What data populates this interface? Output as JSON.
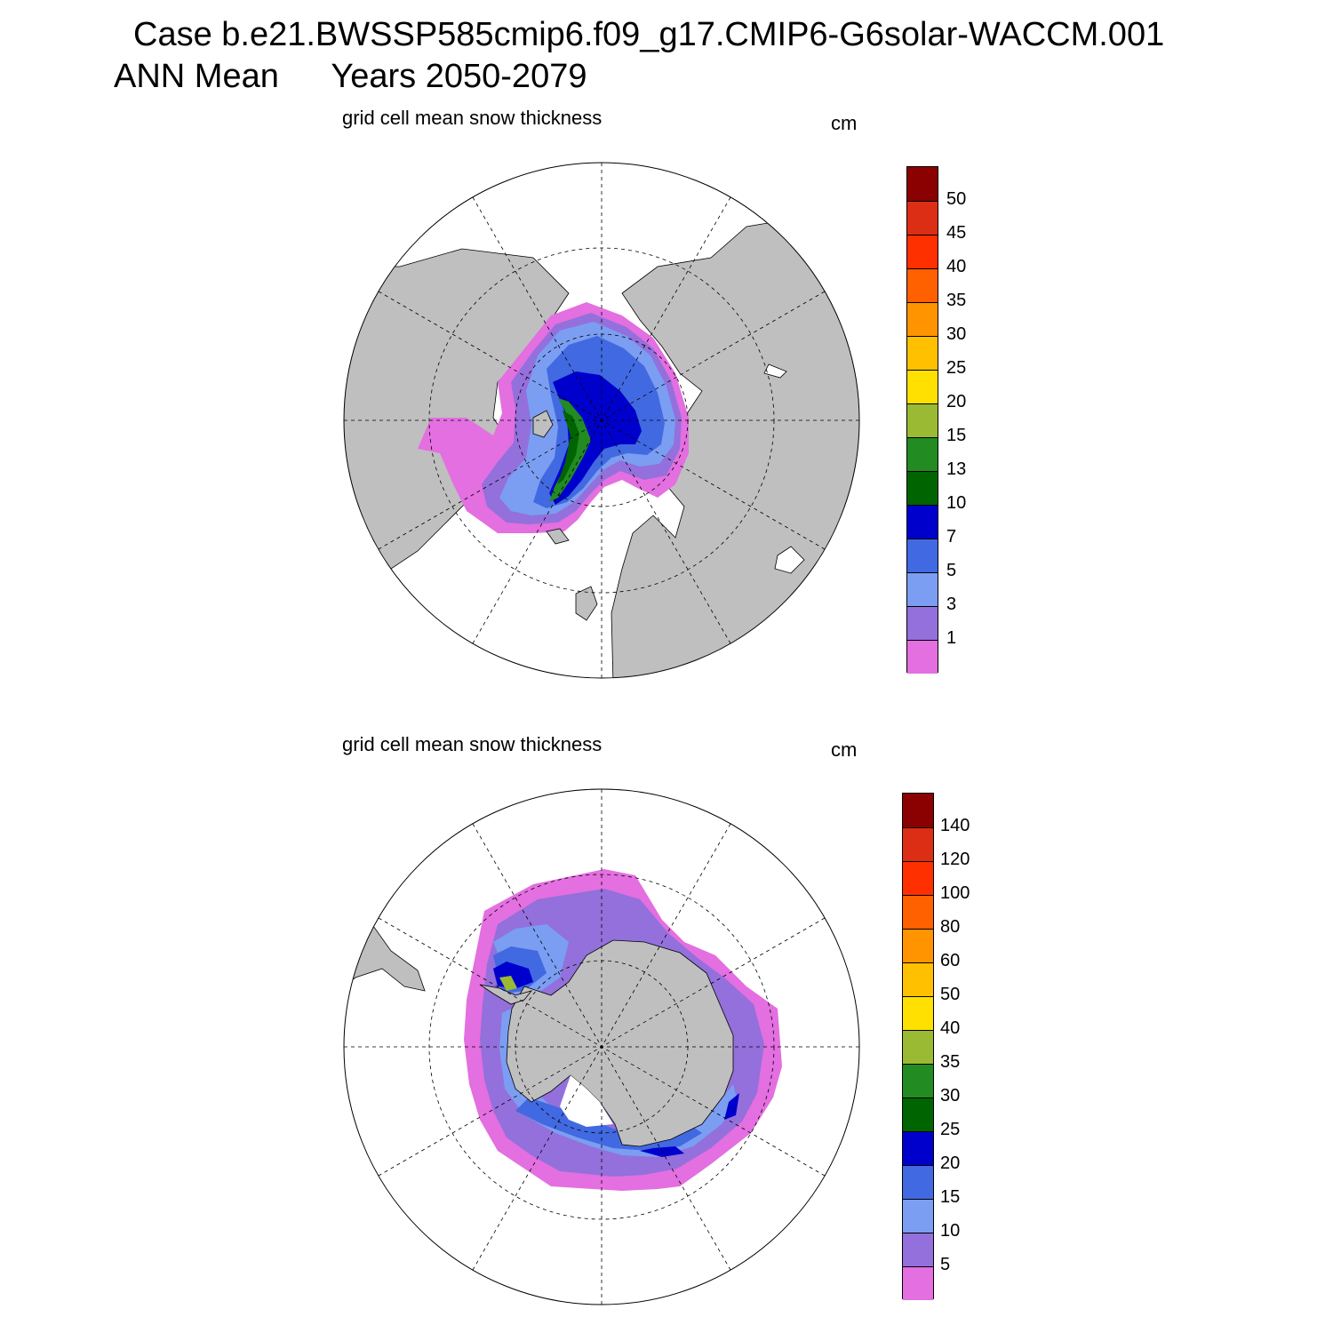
{
  "header": {
    "case_line": "Case b.e21.BWSSP585cmip6.f09_g17.CMIP6-G6solar-WACCM.001",
    "period_label": "ANN Mean",
    "years_label": "Years 2050-2079"
  },
  "colors": {
    "land": "#bfbfbf",
    "ocean": "#ffffff",
    "scale": [
      "#e36fe0",
      "#9370db",
      "#7b9ef2",
      "#4169e1",
      "#0000cd",
      "#006400",
      "#228b22",
      "#9aba33",
      "#ffe000",
      "#ffc000",
      "#ff9400",
      "#ff6000",
      "#ff3000",
      "#dc2e14",
      "#8b0000"
    ]
  },
  "chart_data": [
    {
      "type": "heatmap",
      "projection": "north polar stereographic",
      "title": "grid cell mean snow thickness",
      "units": "cm",
      "colorbar_levels": [
        1,
        3,
        5,
        7,
        10,
        13,
        15,
        20,
        25,
        30,
        35,
        40,
        45,
        50
      ],
      "colorbar_labels": [
        "50",
        "45",
        "40",
        "35",
        "30",
        "25",
        "20",
        "15",
        "13",
        "10",
        "7",
        "5",
        "3",
        "1"
      ],
      "central_arctic_snow_thickness_range_cm": [
        7,
        13
      ],
      "marginal_ice_zone_snow_thickness_range_cm": [
        0,
        3
      ]
    },
    {
      "type": "heatmap",
      "projection": "south polar stereographic",
      "title": "grid cell mean snow thickness",
      "units": "cm",
      "colorbar_levels": [
        5,
        10,
        15,
        20,
        25,
        30,
        35,
        40,
        50,
        60,
        80,
        100,
        120,
        140
      ],
      "colorbar_labels": [
        "140",
        "120",
        "100",
        "80",
        "60",
        "50",
        "40",
        "35",
        "30",
        "25",
        "20",
        "15",
        "10",
        "5"
      ],
      "weddell_sea_snow_thickness_range_cm": [
        15,
        35
      ],
      "outer_ice_edge_snow_thickness_range_cm": [
        0,
        10
      ]
    }
  ]
}
